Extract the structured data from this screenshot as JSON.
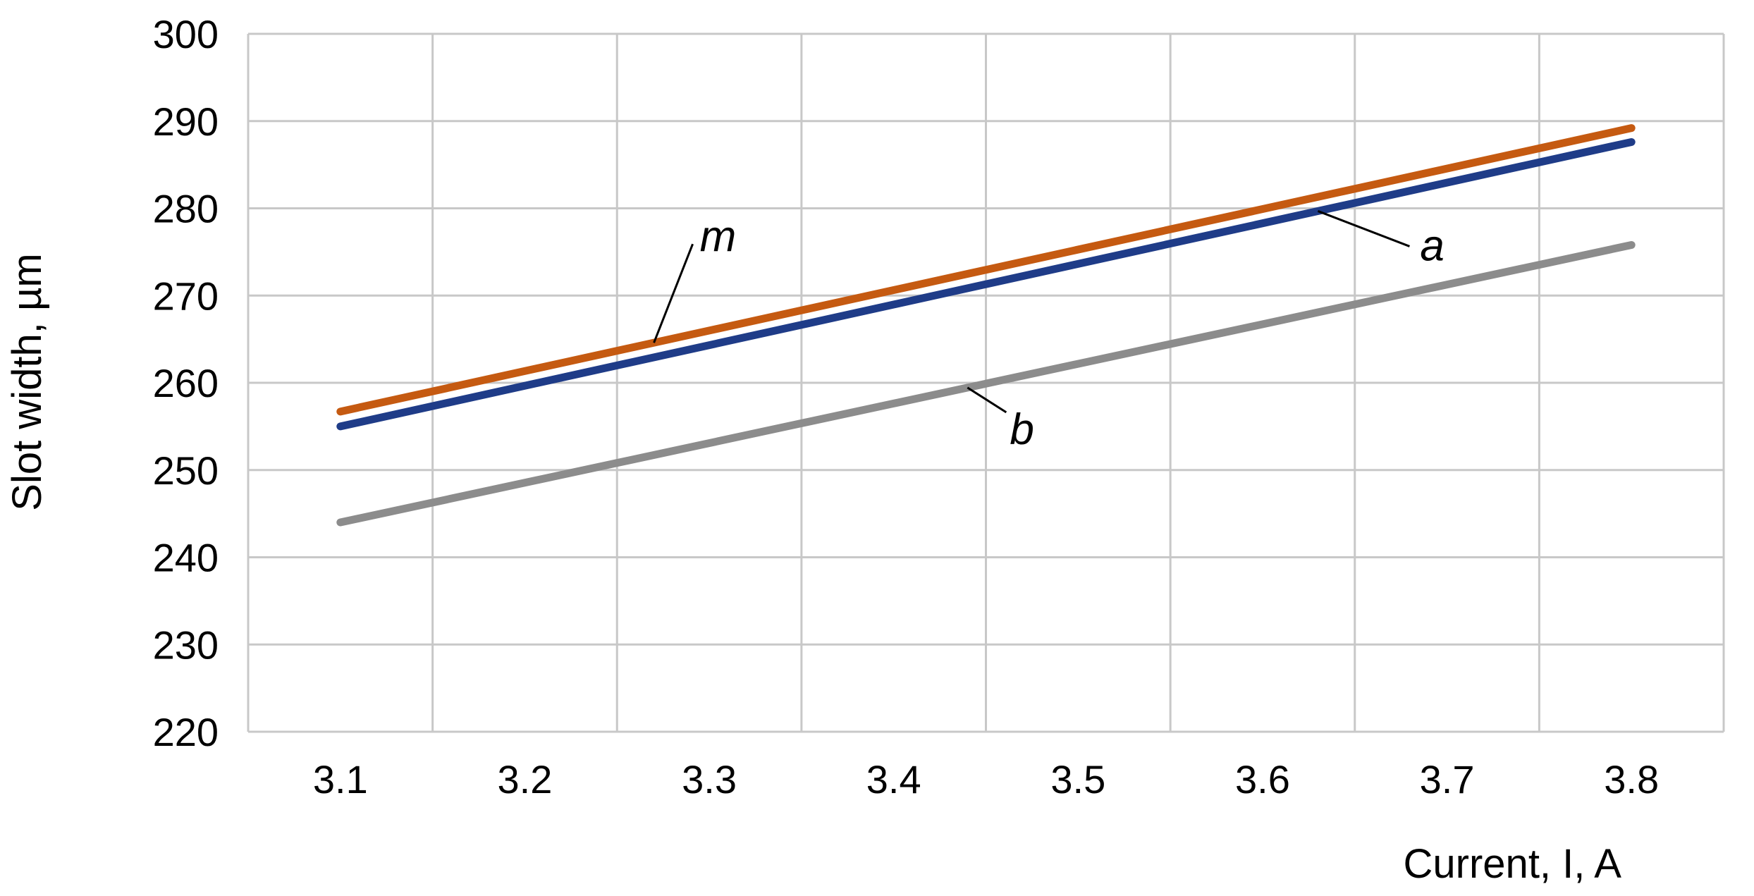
{
  "chart_data": {
    "type": "line",
    "xlabel": "Current, I, A",
    "ylabel": "Slot width, µm",
    "x_tick_labels": [
      "3.1",
      "3.2",
      "3.3",
      "3.4",
      "3.5",
      "3.6",
      "3.7",
      "3.8"
    ],
    "y_tick_labels": [
      "220",
      "230",
      "240",
      "250",
      "260",
      "270",
      "280",
      "290",
      "300"
    ],
    "ylim": [
      220,
      300
    ],
    "grid": true,
    "legend": "none",
    "series": [
      {
        "name": "m",
        "color": "#C55A11",
        "x": [
          3.1,
          3.8
        ],
        "y": [
          256.7,
          289.2
        ]
      },
      {
        "name": "a",
        "color": "#1F3C88",
        "x": [
          3.1,
          3.8
        ],
        "y": [
          255.0,
          287.6
        ]
      },
      {
        "name": "b",
        "color": "#8C8C8C",
        "x": [
          3.1,
          3.8
        ],
        "y": [
          244.0,
          275.8
        ]
      }
    ]
  }
}
